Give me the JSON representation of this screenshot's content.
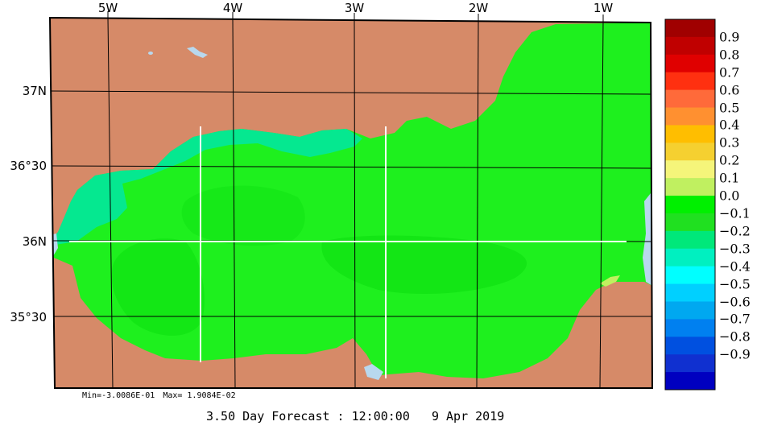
{
  "map": {
    "lon_labels": [
      "5W",
      "4W",
      "3W",
      "2W",
      "1W"
    ],
    "lat_labels": [
      "37N",
      "36°30",
      "36N",
      "35°30"
    ],
    "colors": {
      "land": "#d68a68",
      "lake": "#b8d8ee",
      "frame": "#000000",
      "grid": "#000000",
      "section_lines": "#ffffff"
    }
  },
  "colorbar": {
    "labels": [
      "0.9",
      "0.8",
      "0.7",
      "0.6",
      "0.5",
      "0.4",
      "0.3",
      "0.2",
      "0.1",
      "0.0",
      "−0.1",
      "−0.2",
      "−0.3",
      "−0.4",
      "−0.5",
      "−0.6",
      "−0.7",
      "−0.8",
      "−0.9"
    ],
    "colors": [
      "#a00000",
      "#c00000",
      "#e00000",
      "#ff3010",
      "#ff6a3a",
      "#ff9030",
      "#ffbe00",
      "#f5d030",
      "#f5f57a",
      "#c0f060",
      "#00f000",
      "#20e020",
      "#00e87a",
      "#00f0c0",
      "#00ffff",
      "#00d0ff",
      "#00a8f0",
      "#0080f0",
      "#0050e0",
      "#1030d0",
      "#0000c0"
    ]
  },
  "stats": {
    "min_text": "Min=-3.0086E-01",
    "max_text": "Max= 1.9084E-02"
  },
  "footer": {
    "text": "3.50 Day Forecast : 12:00:00   9 Apr 2019"
  }
}
